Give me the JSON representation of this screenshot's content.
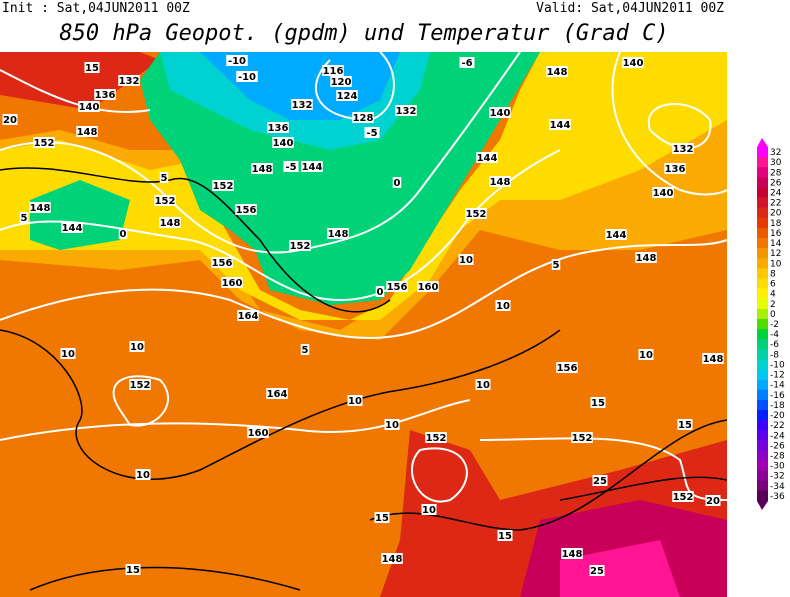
{
  "header": {
    "init": "Init : Sat,04JUN2011 00Z",
    "valid": "Valid: Sat,04JUN2011 00Z",
    "title": "850 hPa Geopot. (gpdm) und Temperatur (Grad C)"
  },
  "colorbar": {
    "levels": [
      32,
      30,
      28,
      26,
      24,
      22,
      20,
      18,
      16,
      14,
      12,
      10,
      8,
      6,
      4,
      2,
      0,
      -2,
      -4,
      -6,
      -8,
      -10,
      -12,
      -14,
      -16,
      -18,
      -20,
      -22,
      -24,
      -26,
      -28,
      -30,
      -32,
      -34,
      -36
    ],
    "colors": [
      "#ff00ff",
      "#ff1493",
      "#e6007e",
      "#c8005a",
      "#c80032",
      "#d21428",
      "#dc2814",
      "#e63c00",
      "#eb5a00",
      "#f07800",
      "#f59600",
      "#faaa00",
      "#ffc800",
      "#ffdc00",
      "#fff000",
      "#e6ff00",
      "#aaf000",
      "#50dc00",
      "#00d23c",
      "#00d278",
      "#00d2aa",
      "#00d2d2",
      "#00c8f0",
      "#00aaff",
      "#0080ff",
      "#0050ff",
      "#0020ff",
      "#3c00ff",
      "#5a00f0",
      "#7800dc",
      "#8c00c8",
      "#a000b4",
      "#8c0096",
      "#780078",
      "#5a005a"
    ]
  },
  "geopotential_labels": [
    "132",
    "136",
    "140",
    "148",
    "152",
    "148",
    "144",
    "152",
    "148",
    "156",
    "160",
    "164",
    "152",
    "160",
    "164",
    "156",
    "160",
    "152",
    "148",
    "144",
    "140",
    "144",
    "148",
    "140",
    "132",
    "136",
    "140",
    "144",
    "148",
    "156",
    "152",
    "152",
    "148",
    "152",
    "148",
    "148",
    "128",
    "132",
    "124",
    "120",
    "116",
    "132",
    "136",
    "140",
    "144",
    "148",
    "152",
    "156",
    "148",
    "152"
  ],
  "temperature_labels": [
    "10",
    "10",
    "10",
    "10",
    "10",
    "10",
    "10",
    "10",
    "10",
    "15",
    "15",
    "15",
    "15",
    "15",
    "20",
    "20",
    "25",
    "25",
    "5",
    "5",
    "5",
    "5",
    "0",
    "0",
    "0",
    "-5",
    "-5",
    "-10",
    "-10",
    "-6",
    "15",
    "10"
  ]
}
